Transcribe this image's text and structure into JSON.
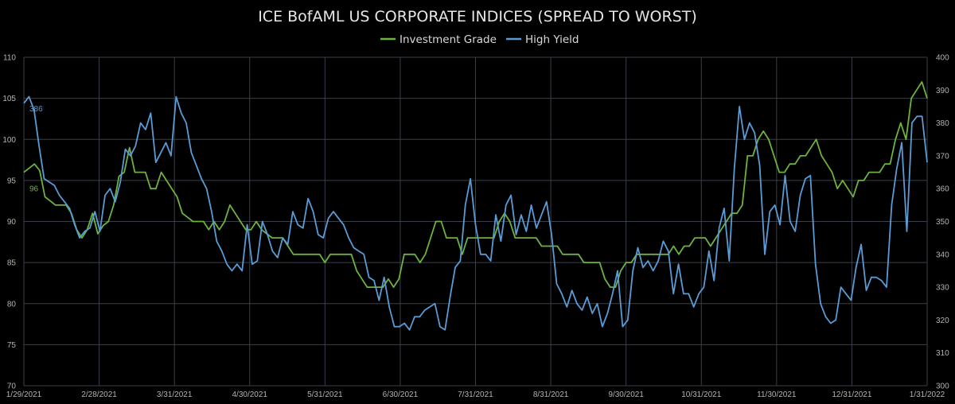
{
  "chart_data": {
    "type": "line",
    "title": "ICE BofAML US CORPORATE INDICES (SPREAD TO WORST)",
    "x_labels": [
      "1/29/2021",
      "2/28/2021",
      "3/31/2021",
      "4/30/2021",
      "5/31/2021",
      "6/30/2021",
      "7/31/2021",
      "8/31/2021",
      "9/30/2021",
      "10/31/2021",
      "11/30/2021",
      "12/31/2021",
      "1/31/2022"
    ],
    "y_left": {
      "ticks": [
        70,
        75,
        80,
        85,
        90,
        95,
        100,
        105,
        110
      ],
      "ylim": [
        70,
        110
      ]
    },
    "y_right": {
      "ticks": [
        300,
        310,
        320,
        330,
        340,
        350,
        360,
        370,
        380,
        390,
        400
      ],
      "ylim": [
        300,
        400
      ]
    },
    "grid": true,
    "legend_position": "top-center",
    "annotations": [
      {
        "text": "386",
        "series": "High Yield"
      },
      {
        "text": "96",
        "series": "Investment Grade"
      }
    ],
    "series": [
      {
        "name": "Investment Grade",
        "axis": "left",
        "color": "#6cb33f",
        "values": [
          96,
          96.5,
          97,
          96.2,
          93,
          92.5,
          92,
          92,
          92,
          91,
          89,
          88,
          89,
          91,
          88.5,
          89.5,
          90,
          92,
          95.5,
          96,
          99,
          96,
          96,
          96,
          94,
          94,
          96,
          95,
          94,
          93,
          91,
          90.5,
          90,
          90,
          90,
          89,
          90,
          89,
          90,
          92,
          91,
          90,
          89,
          89,
          90,
          89,
          88.5,
          88,
          88,
          88,
          87,
          86,
          86,
          86,
          86,
          86,
          86,
          85,
          86,
          86,
          86,
          86,
          86,
          84,
          83,
          82,
          82,
          82,
          82,
          83,
          82,
          83,
          86,
          86,
          86,
          85,
          86,
          88,
          90,
          90,
          88,
          88,
          88,
          86,
          88,
          88,
          88,
          88,
          88,
          88,
          90,
          91,
          90,
          88,
          88,
          88,
          88,
          88,
          87,
          87,
          87,
          87,
          86,
          86,
          86,
          86,
          85,
          85,
          85,
          85,
          83,
          82,
          82,
          84,
          85,
          85,
          86,
          86,
          86,
          86,
          86,
          86,
          86,
          87,
          86,
          87,
          87,
          88,
          88,
          88,
          87,
          88,
          89,
          90,
          91,
          91,
          92,
          98,
          98,
          100,
          101,
          100,
          98,
          96,
          96,
          97,
          97,
          98,
          98,
          99,
          100,
          98,
          97,
          96,
          94,
          95,
          94,
          93,
          95,
          95,
          96,
          96,
          96,
          97,
          97,
          100,
          102,
          100,
          105,
          106,
          107,
          105
        ]
      },
      {
        "name": "High Yield",
        "axis": "right",
        "color": "#5b9bd5",
        "values": [
          386,
          388,
          384,
          373,
          363,
          362,
          361,
          358,
          356,
          354,
          349,
          345,
          347,
          348,
          353,
          347,
          358,
          360,
          356,
          362,
          372,
          370,
          373,
          380,
          378,
          383,
          368,
          371,
          374,
          370,
          388,
          383,
          380,
          371,
          367,
          363,
          360,
          353,
          344,
          341,
          337,
          335,
          337,
          335,
          349,
          337,
          338,
          350,
          346,
          341,
          339,
          345,
          343,
          353,
          349,
          348,
          357,
          353,
          346,
          345,
          351,
          353,
          351,
          349,
          345,
          342,
          341,
          340,
          333,
          332,
          326,
          333,
          324,
          318,
          318,
          319,
          317,
          321,
          321,
          323,
          324,
          325,
          318,
          317,
          327,
          336,
          338,
          355,
          363,
          349,
          340,
          340,
          338,
          352,
          344,
          355,
          358,
          346,
          352,
          347,
          355,
          348,
          352,
          356,
          346,
          331,
          328,
          324,
          329,
          325,
          323,
          327,
          322,
          325,
          318,
          322,
          328,
          335,
          318,
          320,
          335,
          342,
          336,
          338,
          335,
          338,
          344,
          341,
          328,
          337,
          328,
          328,
          324,
          328,
          330,
          341,
          332,
          348,
          354,
          338,
          366,
          385,
          375,
          380,
          377,
          367,
          340,
          353,
          355,
          349,
          364,
          350,
          347,
          358,
          363,
          364,
          337,
          325,
          321,
          319,
          320,
          330,
          328,
          326,
          336,
          343,
          329,
          333,
          333,
          332,
          330,
          355,
          366,
          374,
          347,
          380,
          382,
          382,
          368
        ]
      }
    ]
  }
}
